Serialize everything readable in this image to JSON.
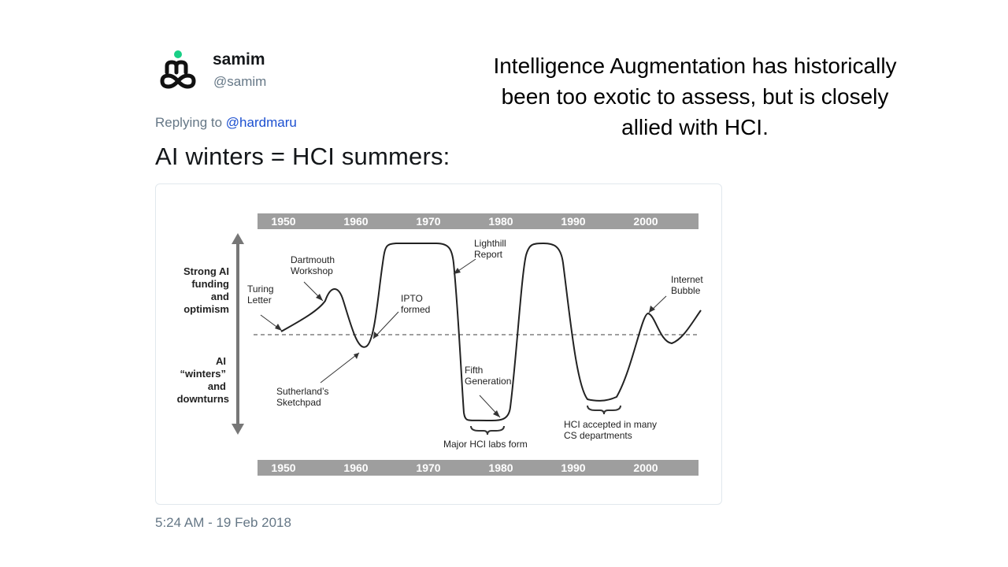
{
  "tweet": {
    "author_name": "samim",
    "author_handle": "@samim",
    "reply_prefix": "Replying to",
    "reply_mention": "@hardmaru",
    "text": "AI winters = HCI summers:",
    "timestamp": "5:24 AM - 19 Feb 2018"
  },
  "side_note": {
    "line1": "Intelligence Augmentation has historically",
    "line2": "been too exotic to assess, but is closely",
    "line3": "allied with HCI."
  },
  "figure": {
    "decades": [
      "1950",
      "1960",
      "1970",
      "1980",
      "1990",
      "2000"
    ],
    "y_top_label": [
      "Strong AI",
      "funding",
      "and",
      "optimism"
    ],
    "y_bottom_label": [
      "AI",
      "“winters”",
      "and",
      "downturns"
    ],
    "annotations": {
      "turing": [
        "Turing",
        "Letter"
      ],
      "dartmouth": [
        "Dartmouth",
        "Workshop"
      ],
      "ipto": [
        "IPTO",
        "formed"
      ],
      "lighthill": [
        "Lighthill",
        "Report"
      ],
      "internet": [
        "Internet",
        "Bubble"
      ],
      "sutherland": [
        "Sutherland’s",
        "Sketchpad"
      ],
      "fifth": [
        "Fifth",
        "Generation"
      ],
      "hci_labs": "Major HCI labs form",
      "hci_cs": [
        "HCI accepted in many",
        "CS departments"
      ]
    }
  },
  "colors": {
    "band": "#9e9e9e",
    "curve": "#222222",
    "mention": "#1b4fd0",
    "muted": "#657786",
    "avatar_dot": "#19cf86"
  }
}
